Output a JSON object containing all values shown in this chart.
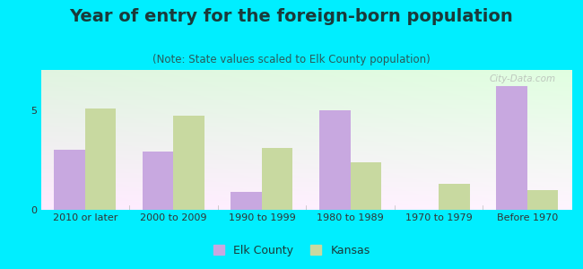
{
  "title": "Year of entry for the foreign-born population",
  "subtitle": "(Note: State values scaled to Elk County population)",
  "categories": [
    "2010 or later",
    "2000 to 2009",
    "1990 to 1999",
    "1980 to 1989",
    "1970 to 1979",
    "Before 1970"
  ],
  "elk_county": [
    3.0,
    2.9,
    0.9,
    5.0,
    0.0,
    6.2
  ],
  "kansas": [
    5.05,
    4.7,
    3.1,
    2.4,
    1.3,
    1.0
  ],
  "elk_color": "#c8a8e0",
  "kansas_color": "#c8d9a0",
  "bg_outer": "#00eeff",
  "ylim": [
    0,
    7
  ],
  "yticks": [
    0,
    5
  ],
  "bar_width": 0.35,
  "title_fontsize": 14,
  "subtitle_fontsize": 8.5,
  "tick_fontsize": 8,
  "legend_fontsize": 9,
  "title_color": "#1a3a3a",
  "subtitle_color": "#2a5a5a",
  "watermark": "City-Data.com"
}
